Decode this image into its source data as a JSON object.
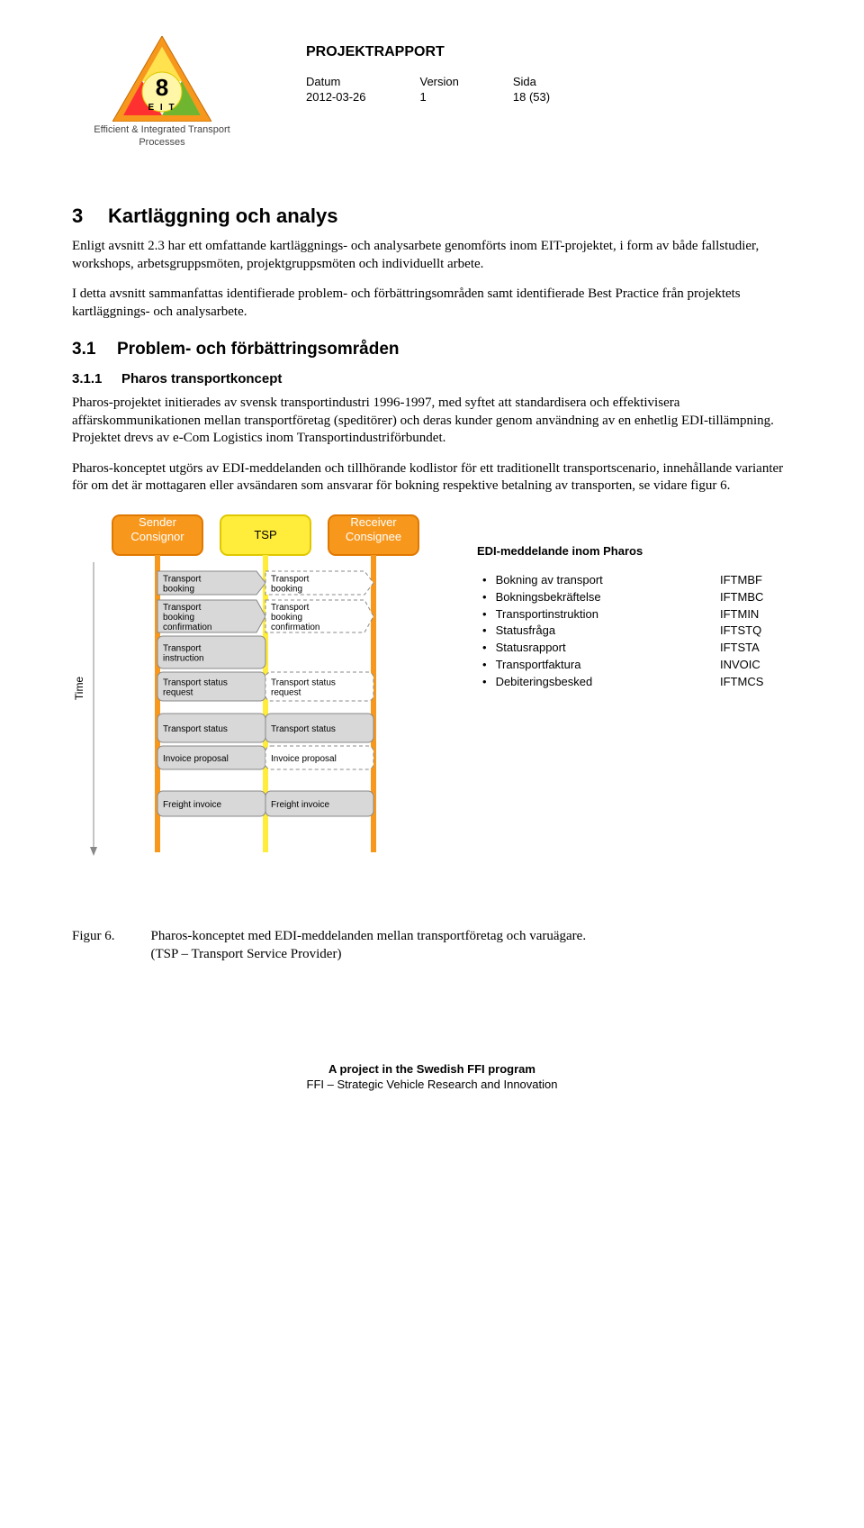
{
  "header": {
    "logo_num": "8",
    "logo_sub": "E I T",
    "logo_caption": "Efficient & Integrated Transport\nProcesses",
    "report_title": "PROJEKTRAPPORT",
    "meta": {
      "date_label": "Datum",
      "date_val": "2012-03-26",
      "version_label": "Version",
      "version_val": "1",
      "page_label": "Sida",
      "page_val": "18 (53)"
    }
  },
  "section": {
    "num": "3",
    "title": "Kartläggning och analys",
    "p1": "Enligt avsnitt 2.3 har ett omfattande kartläggnings- och analysarbete genomförts inom EIT-projektet, i form av både fallstudier, workshops, arbetsgruppsmöten, projektgruppsmöten och individuellt arbete.",
    "p2": "I detta avsnitt sammanfattas identifierade problem- och förbättringsområden samt identifierade Best Practice från projektets kartläggnings- och analysarbete."
  },
  "subsection": {
    "num": "3.1",
    "title": "Problem- och förbättringsområden"
  },
  "subsub": {
    "num": "3.1.1",
    "title": "Pharos transportkoncept",
    "p1": "Pharos-projektet initierades av svensk transportindustri 1996-1997, med syftet att standardisera och effektivisera affärskommunikationen mellan transportföretag (speditörer) och deras kunder genom användning av en enhetlig EDI-tillämpning. Projektet drevs av e-Com Logistics inom Transportindustriförbundet.",
    "p2": "Pharos-konceptet utgörs av EDI-meddelanden och tillhörande kodlistor för ett traditionellt transportscenario, innehållande varianter för om det är mottagaren eller avsändaren som ansvarar för bokning respektive betalning av transporten, se vidare figur 6."
  },
  "diagram": {
    "time_label": "Time",
    "lanes": [
      {
        "title": "Sender\nConsignor",
        "fill": "#f7981d",
        "stroke": "#e07800",
        "text": "#ffffff"
      },
      {
        "title": "TSP",
        "fill": "#ffec3b",
        "stroke": "#e0c800",
        "text": "#000000"
      },
      {
        "title": "Receiver\nConsignee",
        "fill": "#f7981d",
        "stroke": "#e07800",
        "text": "#ffffff"
      }
    ],
    "lane_line_colors": [
      "#f7981d",
      "#ffec3b",
      "#f7981d"
    ],
    "messages": [
      {
        "y": 0,
        "left": "Transport booking",
        "right": "Transport booking",
        "right_dashed": true
      },
      {
        "y": 1,
        "left": "Transport booking confirmation",
        "right": "Transport booking confirmation",
        "right_dashed": true
      },
      {
        "y": 2,
        "left": "Transport instruction"
      },
      {
        "y": 3,
        "left": "Transport status request",
        "right": "Transport status request",
        "right_dashed": true
      },
      {
        "y": 4,
        "left": "Transport status",
        "right": "Transport status"
      },
      {
        "y": 5,
        "left": "Invoice proposal",
        "right": "Invoice proposal",
        "right_dashed": true
      },
      {
        "y": 6,
        "left": "Freight invoice",
        "right": "Freight invoice"
      }
    ],
    "box_fill": "#d8d8d8",
    "box_stroke": "#888888",
    "dashed_fill": "#ffffff",
    "text_color": "#000000",
    "font_size": 10
  },
  "edi": {
    "title": "EDI-meddelande inom Pharos",
    "items": [
      {
        "label": "Bokning av transport",
        "code": "IFTMBF"
      },
      {
        "label": "Bokningsbekräftelse",
        "code": "IFTMBC"
      },
      {
        "label": "Transportinstruktion",
        "code": "IFTMIN"
      },
      {
        "label": "Statusfråga",
        "code": "IFTSTQ"
      },
      {
        "label": "Statusrapport",
        "code": "IFTSTA"
      },
      {
        "label": "Transportfaktura",
        "code": "INVOIC"
      },
      {
        "label": "Debiteringsbesked",
        "code": "IFTMCS"
      }
    ]
  },
  "figure": {
    "label": "Figur 6.",
    "caption": "Pharos-konceptet med EDI-meddelanden mellan transportföretag och varuägare.\n(TSP – Transport Service Provider)"
  },
  "footer": {
    "l1": "A project in the Swedish FFI program",
    "l2": "FFI – Strategic Vehicle Research and Innovation"
  }
}
